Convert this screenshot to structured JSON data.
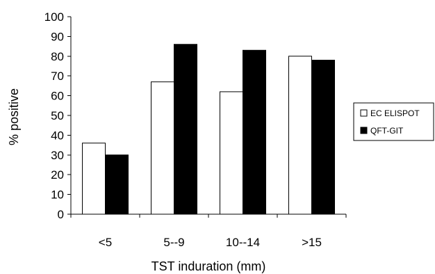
{
  "chart_data": {
    "type": "bar",
    "title": "",
    "xlabel": "TST induration (mm)",
    "ylabel": "% positive",
    "categories": [
      "<5",
      "5--9",
      "10--14",
      ">15"
    ],
    "series": [
      {
        "name": "EC ELISPOT",
        "values": [
          36,
          67,
          62,
          80
        ],
        "color": "#ffffff"
      },
      {
        "name": "QFT-GIT",
        "values": [
          30,
          86,
          83,
          78
        ],
        "color": "#000000"
      }
    ],
    "ylim": [
      0,
      100
    ],
    "yticks": [
      0,
      10,
      20,
      30,
      40,
      50,
      60,
      70,
      80,
      90,
      100
    ],
    "grid": false,
    "legend": "right"
  }
}
